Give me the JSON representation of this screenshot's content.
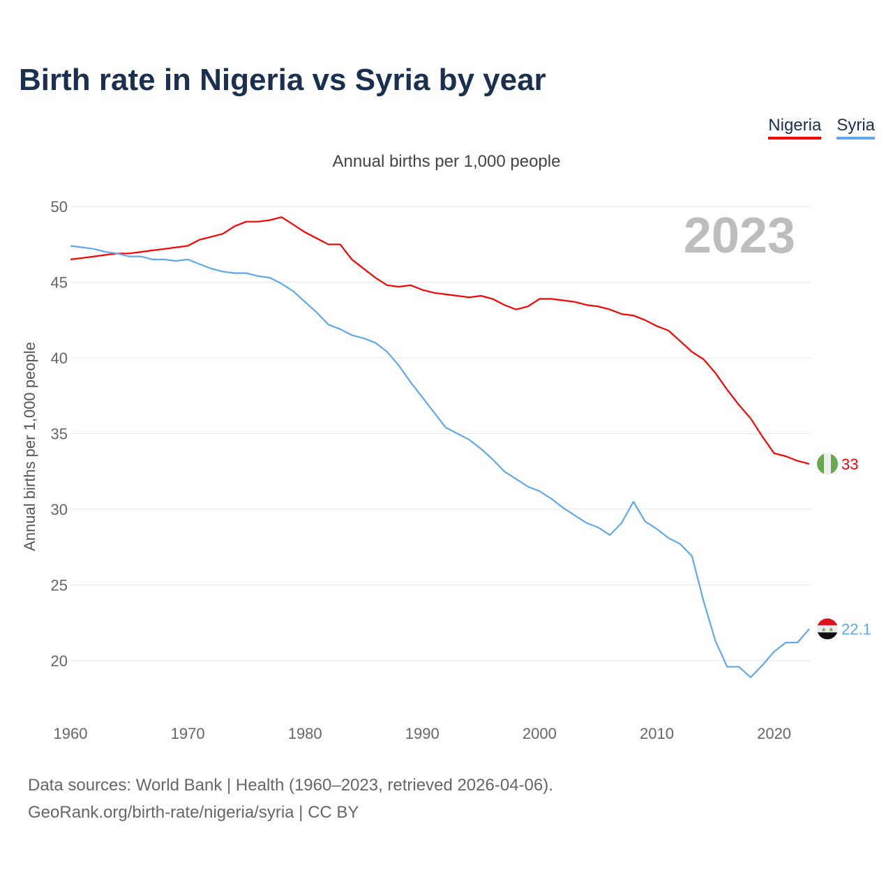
{
  "title": "Birth rate in Nigeria vs Syria by year",
  "source_line1": "Data sources: World Bank | Health (1960–2023, retrieved 2026-04-06).",
  "source_line2": "GeoRank.org/birth-rate/nigeria/syria | CC BY",
  "chart_data": {
    "type": "line",
    "title": "Birth rate in Nigeria vs Syria by year",
    "subtitle": "Annual births per 1,000 people",
    "ylabel": "Annual births per 1,000 people",
    "xlabel": "",
    "year_watermark": "2023",
    "xlim": [
      1960,
      2023
    ],
    "ylim": [
      17,
      51
    ],
    "xticks": [
      1960,
      1970,
      1980,
      1990,
      2000,
      2010,
      2020
    ],
    "yticks": [
      20,
      25,
      30,
      35,
      40,
      45,
      50
    ],
    "grid": true,
    "legend": "top-right",
    "x_start": 1960,
    "series": [
      {
        "name": "Nigeria",
        "color": "#ff0000",
        "end_label": "33",
        "flag": "nigeria-flag",
        "values": [
          46.5,
          46.6,
          46.7,
          46.8,
          46.9,
          46.9,
          47.0,
          47.1,
          47.2,
          47.3,
          47.4,
          47.8,
          48.0,
          48.2,
          48.7,
          49.0,
          49.0,
          49.1,
          49.3,
          48.8,
          48.3,
          47.9,
          47.5,
          47.5,
          46.5,
          45.9,
          45.3,
          44.8,
          44.7,
          44.8,
          44.5,
          44.3,
          44.2,
          44.1,
          44.0,
          44.1,
          43.9,
          43.5,
          43.2,
          43.4,
          43.9,
          43.9,
          43.8,
          43.7,
          43.5,
          43.4,
          43.2,
          42.9,
          42.8,
          42.5,
          42.1,
          41.8,
          41.1,
          40.4,
          39.9,
          39.0,
          37.9,
          36.9,
          36.0,
          34.8,
          33.7,
          33.5,
          33.2,
          33.0
        ]
      },
      {
        "name": "Syria",
        "color": "#5fa8ee",
        "end_label": "22.1",
        "flag": "syria-flag",
        "values": [
          47.4,
          47.3,
          47.2,
          47.0,
          46.9,
          46.7,
          46.7,
          46.5,
          46.5,
          46.4,
          46.5,
          46.2,
          45.9,
          45.7,
          45.6,
          45.6,
          45.4,
          45.3,
          44.9,
          44.4,
          43.7,
          43.0,
          42.2,
          41.9,
          41.5,
          41.3,
          41.0,
          40.4,
          39.5,
          38.4,
          37.4,
          36.4,
          35.4,
          35.0,
          34.6,
          34.0,
          33.3,
          32.5,
          32.0,
          31.5,
          31.2,
          30.7,
          30.1,
          29.6,
          29.1,
          28.8,
          28.3,
          29.1,
          30.5,
          29.2,
          28.7,
          28.1,
          27.7,
          26.9,
          23.9,
          21.3,
          19.6,
          19.6,
          18.9,
          19.7,
          20.6,
          21.2,
          21.2,
          22.1
        ]
      }
    ]
  }
}
